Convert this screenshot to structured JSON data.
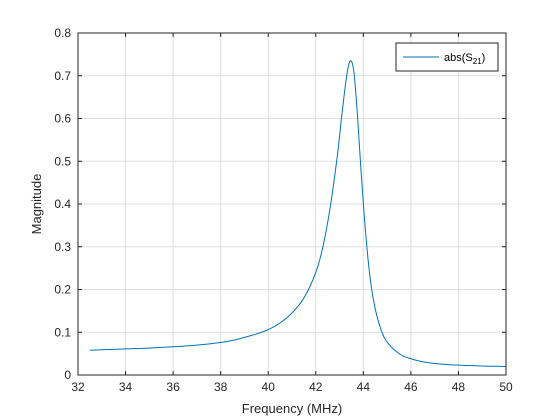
{
  "chart_data": {
    "type": "line",
    "xlabel": "Frequency (MHz)",
    "ylabel": "Magnitude",
    "xlim": [
      32,
      50
    ],
    "ylim": [
      0,
      0.8
    ],
    "xticks": [
      "32",
      "34",
      "36",
      "38",
      "40",
      "42",
      "44",
      "46",
      "48",
      "50"
    ],
    "yticks": [
      "0",
      "0.1",
      "0.2",
      "0.3",
      "0.4",
      "0.5",
      "0.6",
      "0.7",
      "0.8"
    ],
    "grid": true,
    "legend": {
      "placement": "top-right",
      "label_main": "abs(S",
      "label_sub": "21",
      "label_close": ")"
    },
    "series": [
      {
        "name": "abs(S21)",
        "color": "#0072BD",
        "x": [
          32.5,
          33,
          34,
          35,
          36,
          37,
          38,
          38.5,
          39,
          39.5,
          40,
          40.5,
          41,
          41.5,
          42,
          42.3,
          42.6,
          42.9,
          43.1,
          43.3,
          43.45,
          43.6,
          43.75,
          43.9,
          44.1,
          44.3,
          44.5,
          44.75,
          45,
          45.5,
          46,
          46.5,
          47,
          48,
          49,
          50
        ],
        "y": [
          0.058,
          0.059,
          0.061,
          0.063,
          0.066,
          0.07,
          0.076,
          0.081,
          0.088,
          0.096,
          0.106,
          0.122,
          0.145,
          0.18,
          0.24,
          0.3,
          0.39,
          0.51,
          0.61,
          0.7,
          0.735,
          0.71,
          0.61,
          0.48,
          0.33,
          0.22,
          0.155,
          0.105,
          0.077,
          0.05,
          0.038,
          0.031,
          0.027,
          0.023,
          0.021,
          0.02
        ]
      }
    ]
  }
}
